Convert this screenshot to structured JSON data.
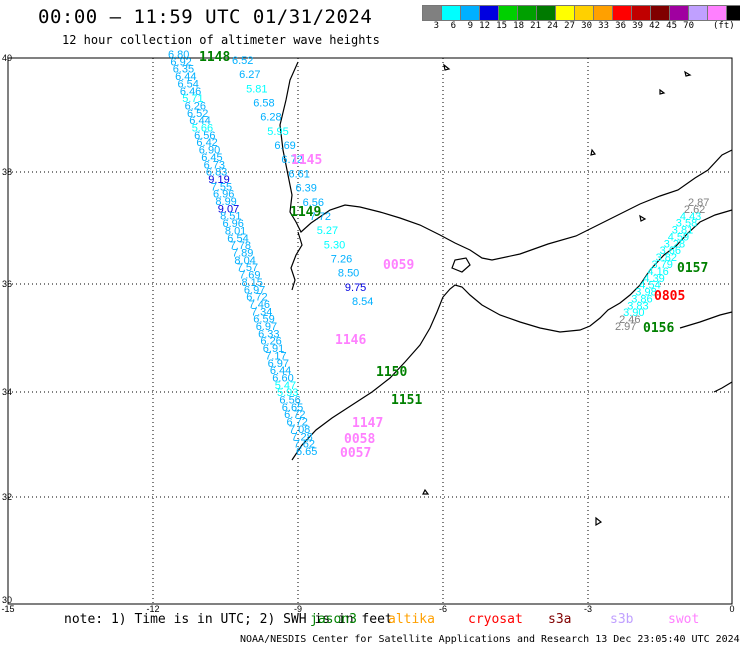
{
  "header": {
    "title": "00:00 – 11:59 UTC 01/31/2024",
    "subtitle": "12 hour collection of altimeter wave heights"
  },
  "legend": {
    "colors": [
      "#808080",
      "#00ffff",
      "#00b0ff",
      "#0000e0",
      "#00d000",
      "#00a000",
      "#007a00",
      "#ffff00",
      "#ffd000",
      "#ffa000",
      "#ff0000",
      "#c00000",
      "#800000",
      "#a000a0",
      "#c0a0ff",
      "#ff80ff",
      "#000000"
    ],
    "labels": [
      "3",
      "6",
      "9",
      "12",
      "15",
      "18",
      "21",
      "24",
      "27",
      "30",
      "33",
      "36",
      "39",
      "42",
      "45",
      "70"
    ],
    "unit": "(ft)"
  },
  "axes": {
    "y_labels": [
      "40",
      "38",
      "36",
      "34",
      "32",
      "30"
    ],
    "x_labels": [
      "-15",
      "-12",
      "-9",
      "-6",
      "-3",
      "0"
    ]
  },
  "tracks": [
    {
      "x": [
        "6.80",
        "6.92",
        "6.35",
        "6.44",
        "6.54",
        "6.46",
        "5.71",
        "6.26",
        "6.52",
        "6.44",
        "5.66",
        "6.56",
        "6.42",
        "6.90",
        "6.45",
        "6.73",
        "6.83",
        "9.19",
        "7.55",
        "6.96",
        "8.99",
        "9.07",
        "8.51",
        "6.96",
        "8.01",
        "6.54",
        "7.78",
        "7.89",
        "8.04",
        "7.57",
        "7.69",
        "8.15",
        "6.97",
        "6.72",
        "7.46",
        "7.34",
        "6.59",
        "6.97",
        "6.33",
        "6.26",
        "6.91",
        "7.17",
        "6.97",
        "6.44",
        "6.60",
        "5.47",
        "5.93",
        "6.56",
        "6.65",
        "6.72",
        "6.72",
        "7.08",
        "7.28",
        "7.62",
        "6.65"
      ]
    },
    {
      "x": [
        "6.52",
        "6.27",
        "5.81",
        "6.58",
        "6.28",
        "5.95",
        "6.69",
        "6.72",
        "6.61",
        "6.39",
        "6.56",
        "7.72",
        "5.27",
        "5.30",
        "7.26",
        "8.50",
        "9.75",
        "8.54"
      ]
    },
    {
      "x": [
        "2.87",
        "2.62",
        "4.43",
        "3.58",
        "3.81",
        "4.59",
        "3.28",
        "3.66",
        "3.82",
        "3.79",
        "4.16",
        "4.39",
        "4.54",
        "3.98",
        "3.86",
        "3.83",
        "3.90",
        "2.46",
        "2.97"
      ]
    }
  ],
  "time_labels": [
    {
      "text": "1148",
      "color": "#008000"
    },
    {
      "text": "1145",
      "color": "#ff80ff"
    },
    {
      "text": "1149",
      "color": "#008000"
    },
    {
      "text": "0059",
      "color": "#ff80ff"
    },
    {
      "text": "1146",
      "color": "#ff80ff"
    },
    {
      "text": "1150",
      "color": "#008000"
    },
    {
      "text": "1151",
      "color": "#008000"
    },
    {
      "text": "1147",
      "color": "#ff80ff"
    },
    {
      "text": "0058",
      "color": "#ff80ff"
    },
    {
      "text": "0057",
      "color": "#ff80ff"
    },
    {
      "text": "0157",
      "color": "#008000"
    },
    {
      "text": "0805",
      "color": "#ff0000"
    },
    {
      "text": "0156",
      "color": "#008000"
    }
  ],
  "footer": {
    "note": "note: 1) Time is in UTC; 2) SWH is in feet",
    "satellites": [
      {
        "name": "jason3",
        "color": "#008000"
      },
      {
        "name": "altika",
        "color": "#ffa000"
      },
      {
        "name": "cryosat",
        "color": "#ff0000"
      },
      {
        "name": "s3a",
        "color": "#800000"
      },
      {
        "name": "s3b",
        "color": "#c0a0ff"
      },
      {
        "name": "swot",
        "color": "#ff80ff"
      }
    ],
    "credit": "NOAA/NESDIS Center for Satellite Applications and Research   13 Dec 23:05:40 UTC 2024"
  }
}
